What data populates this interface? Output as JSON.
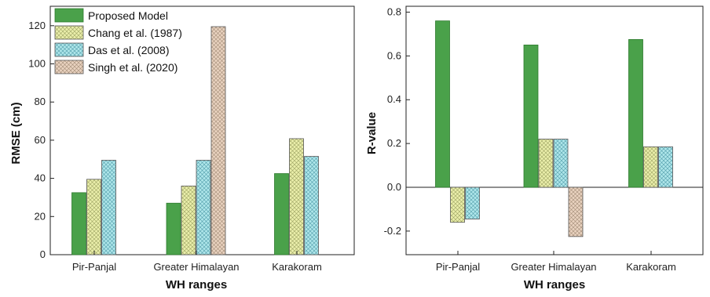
{
  "chart_data": [
    {
      "type": "bar",
      "categories": [
        "Pir-Panjal",
        "Greater Himalayan",
        "Karakoram"
      ],
      "xlabel": "WH ranges",
      "ylabel": "RMSE (cm)",
      "ylim": [
        0,
        130
      ],
      "yticks": [
        0,
        20,
        40,
        60,
        80,
        100,
        120
      ],
      "legend": "top-left",
      "series": [
        {
          "name": "Proposed Model",
          "values": [
            32.5,
            27,
            42.5
          ],
          "color": "#4aa14a",
          "pattern": "solid"
        },
        {
          "name": "Chang et al. (1987)",
          "values": [
            39.5,
            36,
            60.8
          ],
          "color": "#eaeeaa",
          "pattern": "crosshatch"
        },
        {
          "name": "Das et al. (2008)",
          "values": [
            49.5,
            49.5,
            51.5
          ],
          "color": "#aee6ea",
          "pattern": "crosshatch"
        },
        {
          "name": "Singh et al. (2020)",
          "values": [
            null,
            119.5,
            null
          ],
          "color": "#e9d2bf",
          "pattern": "crosshatch"
        }
      ]
    },
    {
      "type": "bar",
      "categories": [
        "Pir-Panjal",
        "Greater Himalayan",
        "Karakoram"
      ],
      "xlabel": "WH ranges",
      "ylabel": "R-value",
      "ylim": [
        -0.32,
        0.8
      ],
      "yticks": [
        "-0.2",
        "0.0",
        "0.2",
        "0.4",
        "0.6",
        "0.8"
      ],
      "series": [
        {
          "name": "Proposed Model",
          "values": [
            0.76,
            0.65,
            0.675
          ],
          "color": "#4aa14a",
          "pattern": "solid"
        },
        {
          "name": "Chang et al. (1987)",
          "values": [
            -0.16,
            0.22,
            0.185
          ],
          "color": "#eaeeaa",
          "pattern": "crosshatch"
        },
        {
          "name": "Das et al. (2008)",
          "values": [
            -0.145,
            0.22,
            0.185
          ],
          "color": "#aee6ea",
          "pattern": "crosshatch"
        },
        {
          "name": "Singh et al. (2020)",
          "values": [
            null,
            -0.225,
            null
          ],
          "color": "#e9d2bf",
          "pattern": "crosshatch"
        }
      ]
    }
  ]
}
